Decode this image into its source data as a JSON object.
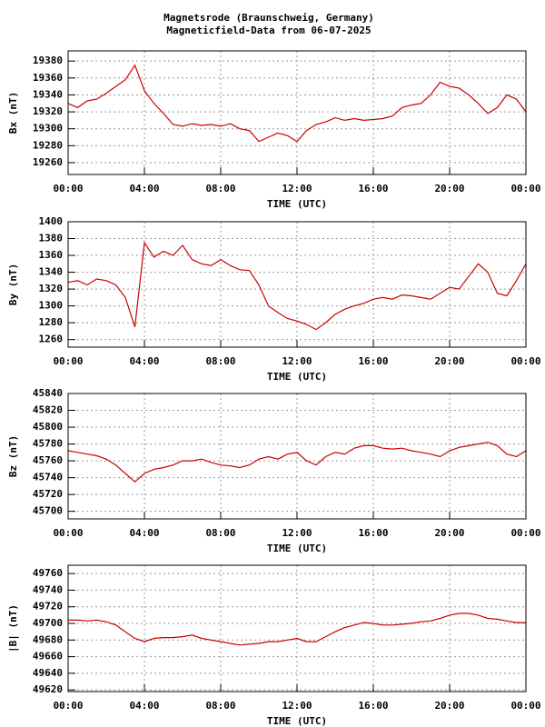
{
  "title": "Magnetsrode (Braunschweig, Germany)",
  "subtitle": "Magneticfield-Data from 06-07-2025",
  "chart_data": [
    {
      "type": "line",
      "y_label": "Bx (nT)",
      "x_label": "TIME (UTC)",
      "x": [
        0,
        0.5,
        1,
        1.5,
        2,
        2.5,
        3,
        3.5,
        4,
        4.5,
        5,
        5.5,
        6,
        6.5,
        7,
        7.5,
        8,
        8.5,
        9,
        9.5,
        10,
        10.5,
        11,
        11.5,
        12,
        12.5,
        13,
        13.5,
        14,
        14.5,
        15,
        15.5,
        16,
        16.5,
        17,
        17.5,
        18,
        18.5,
        19,
        19.5,
        20,
        20.5,
        21,
        21.5,
        22,
        22.5,
        23,
        23.5,
        24
      ],
      "series": [
        {
          "color": "#cc0000",
          "values": [
            19330,
            19325,
            19333,
            19335,
            19342,
            19350,
            19358,
            19375,
            19345,
            19330,
            19318,
            19305,
            19303,
            19306,
            19304,
            19305,
            19303,
            19306,
            19300,
            19298,
            19285,
            19290,
            19295,
            19292,
            19285,
            19298,
            19305,
            19308,
            19313,
            19310,
            19312,
            19310,
            19311,
            19312,
            19315,
            19325,
            19328,
            19330,
            19340,
            19355,
            19350,
            19348,
            19340,
            19330,
            19318,
            19325,
            19340,
            19335,
            19320
          ]
        }
      ],
      "xlim": [
        0,
        24
      ],
      "xticks": [
        {
          "value": 0,
          "label": "00:00"
        },
        {
          "value": 4,
          "label": "04:00"
        },
        {
          "value": 8,
          "label": "08:00"
        },
        {
          "value": 12,
          "label": "12:00"
        },
        {
          "value": 16,
          "label": "16:00"
        },
        {
          "value": 20,
          "label": "20:00"
        },
        {
          "value": 24,
          "label": "00:00"
        }
      ],
      "ylim": [
        19246,
        19392
      ],
      "yticks": [
        19260,
        19280,
        19300,
        19320,
        19340,
        19360,
        19380
      ],
      "grid": true
    },
    {
      "type": "line",
      "y_label": "By (nT)",
      "x_label": "TIME (UTC)",
      "x": [
        0,
        0.5,
        1,
        1.5,
        2,
        2.5,
        3,
        3.5,
        4,
        4.5,
        5,
        5.5,
        6,
        6.5,
        7,
        7.5,
        8,
        8.5,
        9,
        9.5,
        10,
        10.5,
        11,
        11.5,
        12,
        12.5,
        13,
        13.5,
        14,
        14.5,
        15,
        15.5,
        16,
        16.5,
        17,
        17.5,
        18,
        18.5,
        19,
        19.5,
        20,
        20.5,
        21,
        21.5,
        22,
        22.5,
        23,
        23.5,
        24
      ],
      "series": [
        {
          "color": "#cc0000",
          "values": [
            1328,
            1330,
            1325,
            1332,
            1330,
            1325,
            1310,
            1275,
            1375,
            1358,
            1365,
            1360,
            1372,
            1355,
            1350,
            1348,
            1355,
            1348,
            1343,
            1342,
            1325,
            1300,
            1292,
            1285,
            1282,
            1278,
            1272,
            1280,
            1290,
            1296,
            1300,
            1303,
            1308,
            1310,
            1308,
            1313,
            1312,
            1310,
            1308,
            1315,
            1322,
            1320,
            1335,
            1350,
            1340,
            1315,
            1312,
            1330,
            1350
          ]
        }
      ],
      "xlim": [
        0,
        24
      ],
      "xticks": [
        {
          "value": 0,
          "label": "00:00"
        },
        {
          "value": 4,
          "label": "04:00"
        },
        {
          "value": 8,
          "label": "08:00"
        },
        {
          "value": 12,
          "label": "12:00"
        },
        {
          "value": 16,
          "label": "16:00"
        },
        {
          "value": 20,
          "label": "20:00"
        },
        {
          "value": 24,
          "label": "00:00"
        }
      ],
      "ylim": [
        1251,
        1400
      ],
      "yticks": [
        1260,
        1280,
        1300,
        1320,
        1340,
        1360,
        1380,
        1400
      ],
      "grid": true
    },
    {
      "type": "line",
      "y_label": "Bz (nT)",
      "x_label": "TIME (UTC)",
      "x": [
        0,
        0.5,
        1,
        1.5,
        2,
        2.5,
        3,
        3.5,
        4,
        4.5,
        5,
        5.5,
        6,
        6.5,
        7,
        7.5,
        8,
        8.5,
        9,
        9.5,
        10,
        10.5,
        11,
        11.5,
        12,
        12.5,
        13,
        13.5,
        14,
        14.5,
        15,
        15.5,
        16,
        16.5,
        17,
        17.5,
        18,
        18.5,
        19,
        19.5,
        20,
        20.5,
        21,
        21.5,
        22,
        22.5,
        23,
        23.5,
        24
      ],
      "series": [
        {
          "color": "#cc0000",
          "values": [
            45772,
            45770,
            45768,
            45766,
            45762,
            45755,
            45745,
            45735,
            45745,
            45750,
            45752,
            45755,
            45760,
            45760,
            45762,
            45758,
            45755,
            45754,
            45752,
            45755,
            45762,
            45765,
            45762,
            45768,
            45770,
            45760,
            45755,
            45765,
            45770,
            45768,
            45775,
            45778,
            45778,
            45775,
            45774,
            45775,
            45772,
            45770,
            45768,
            45765,
            45772,
            45776,
            45778,
            45780,
            45782,
            45778,
            45768,
            45765,
            45772
          ]
        }
      ],
      "xlim": [
        0,
        24
      ],
      "xticks": [
        {
          "value": 0,
          "label": "00:00"
        },
        {
          "value": 4,
          "label": "04:00"
        },
        {
          "value": 8,
          "label": "08:00"
        },
        {
          "value": 12,
          "label": "12:00"
        },
        {
          "value": 16,
          "label": "16:00"
        },
        {
          "value": 20,
          "label": "20:00"
        },
        {
          "value": 24,
          "label": "00:00"
        }
      ],
      "ylim": [
        45691,
        45840
      ],
      "yticks": [
        45700,
        45720,
        45740,
        45760,
        45780,
        45800,
        45820,
        45840
      ],
      "grid": true
    },
    {
      "type": "line",
      "y_label": "|B| (nT)",
      "x_label": "TIME (UTC)",
      "x": [
        0,
        0.5,
        1,
        1.5,
        2,
        2.5,
        3,
        3.5,
        4,
        4.5,
        5,
        5.5,
        6,
        6.5,
        7,
        7.5,
        8,
        8.5,
        9,
        9.5,
        10,
        10.5,
        11,
        11.5,
        12,
        12.5,
        13,
        13.5,
        14,
        14.5,
        15,
        15.5,
        16,
        16.5,
        17,
        17.5,
        18,
        18.5,
        19,
        19.5,
        20,
        20.5,
        21,
        21.5,
        22,
        22.5,
        23,
        23.5,
        24
      ],
      "series": [
        {
          "color": "#cc0000",
          "values": [
            49704,
            49704,
            49703,
            49704,
            49702,
            49698,
            49690,
            49682,
            49678,
            49682,
            49683,
            49683,
            49684,
            49686,
            49682,
            49680,
            49678,
            49676,
            49674,
            49675,
            49676,
            49678,
            49678,
            49680,
            49682,
            49678,
            49678,
            49684,
            49690,
            49695,
            49698,
            49701,
            49700,
            49698,
            49698,
            49699,
            49700,
            49702,
            49703,
            49706,
            49710,
            49712,
            49712,
            49710,
            49706,
            49705,
            49703,
            49701,
            49701
          ]
        }
      ],
      "xlim": [
        0,
        24
      ],
      "xticks": [
        {
          "value": 0,
          "label": "00:00"
        },
        {
          "value": 4,
          "label": "04:00"
        },
        {
          "value": 8,
          "label": "08:00"
        },
        {
          "value": 12,
          "label": "12:00"
        },
        {
          "value": 16,
          "label": "16:00"
        },
        {
          "value": 20,
          "label": "20:00"
        },
        {
          "value": 24,
          "label": "00:00"
        }
      ],
      "ylim": [
        49618,
        49770
      ],
      "yticks": [
        49620,
        49640,
        49660,
        49680,
        49700,
        49720,
        49740,
        49760
      ],
      "grid": true
    }
  ]
}
